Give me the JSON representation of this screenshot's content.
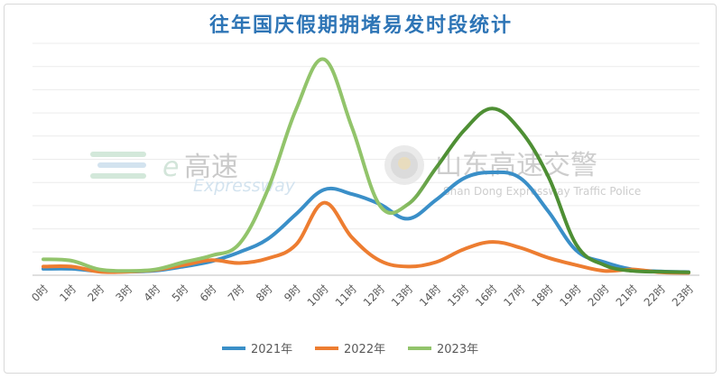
{
  "chart_data": {
    "type": "line",
    "title": "往年国庆假期拥堵易发时段统计",
    "categories": [
      "0时",
      "1时",
      "2时",
      "3时",
      "4时",
      "5时",
      "6时",
      "7时",
      "8时",
      "9时",
      "10时",
      "11时",
      "12时",
      "13时",
      "14时",
      "15时",
      "16时",
      "17时",
      "18时",
      "19时",
      "20时",
      "21时",
      "22时",
      "23时"
    ],
    "series": [
      {
        "name": "2021年",
        "color": "#3a8fc8",
        "values": [
          2.2,
          2.2,
          1.4,
          1.2,
          1.6,
          3.0,
          4.8,
          8.0,
          12.5,
          21.0,
          29.5,
          28.0,
          24.5,
          19.5,
          26.0,
          33.5,
          35.5,
          33.5,
          22.0,
          8.5,
          4.5,
          2.0,
          1.3,
          1.1
        ]
      },
      {
        "name": "2022年",
        "color": "#ed7d31",
        "values": [
          3.0,
          3.0,
          1.2,
          1.2,
          1.8,
          3.5,
          5.2,
          4.2,
          5.8,
          10.5,
          25.0,
          13.0,
          5.0,
          3.0,
          4.5,
          9.0,
          11.5,
          9.5,
          6.0,
          3.5,
          1.5,
          2.0,
          1.0,
          0.8
        ]
      },
      {
        "name": "2023年",
        "color": "#92c46b",
        "colorEnd": "#4e8f34",
        "values": [
          5.5,
          5.0,
          2.0,
          1.5,
          2.0,
          4.5,
          6.8,
          11.0,
          29.5,
          57.0,
          74.5,
          51.0,
          24.0,
          24.5,
          37.0,
          50.0,
          57.5,
          50.0,
          34.0,
          10.5,
          3.5,
          1.5,
          1.2,
          1.0
        ]
      }
    ],
    "ylim": [
      0,
      80
    ],
    "grid": true,
    "legend": "bottom"
  },
  "watermarks": {
    "left_text": "高速",
    "left_e": "e",
    "left_sub": "Expressway",
    "right_text": "山东高速交警",
    "right_sub": "Shan Dong Expressway Traffic Police"
  }
}
